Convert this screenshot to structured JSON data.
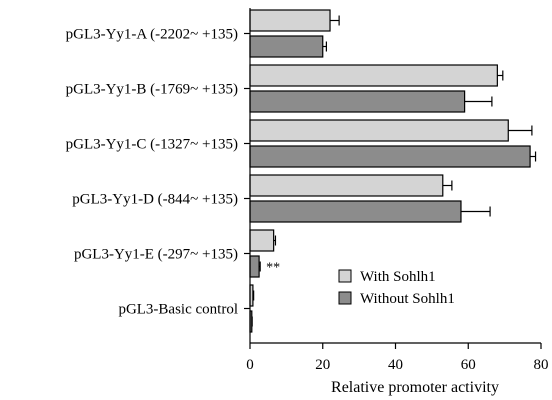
{
  "chart_data": {
    "type": "bar",
    "orientation": "horizontal",
    "categories": [
      "pGL3-Yy1-A (-2202~ +135)",
      "pGL3-Yy1-B (-1769~ +135)",
      "pGL3-Yy1-C (-1327~ +135)",
      "pGL3-Yy1-D (-844~ +135)",
      "pGL3-Yy1-E (-297~ +135)",
      "pGL3-Basic control"
    ],
    "series": [
      {
        "name": "With Sohlh1",
        "color": "#d4d4d4",
        "values": [
          22,
          68,
          71,
          53,
          6.5,
          0.8
        ],
        "errors": [
          2.5,
          1.5,
          6.5,
          2.5,
          0.5,
          0.2
        ]
      },
      {
        "name": "Without Sohlh1",
        "color": "#8c8c8c",
        "values": [
          20,
          59,
          77,
          58,
          2.5,
          0.5
        ],
        "errors": [
          1,
          7.5,
          1.5,
          8,
          0.3,
          0.1
        ]
      }
    ],
    "annotations": [
      {
        "category_index": 4,
        "series_index": 1,
        "text": "**"
      }
    ],
    "xlabel": "Relative promoter activity",
    "xlim": [
      0,
      80
    ],
    "xticks": [
      "0",
      "20",
      "40",
      "60",
      "80"
    ],
    "legend": "inside lower-right",
    "grid": false
  }
}
